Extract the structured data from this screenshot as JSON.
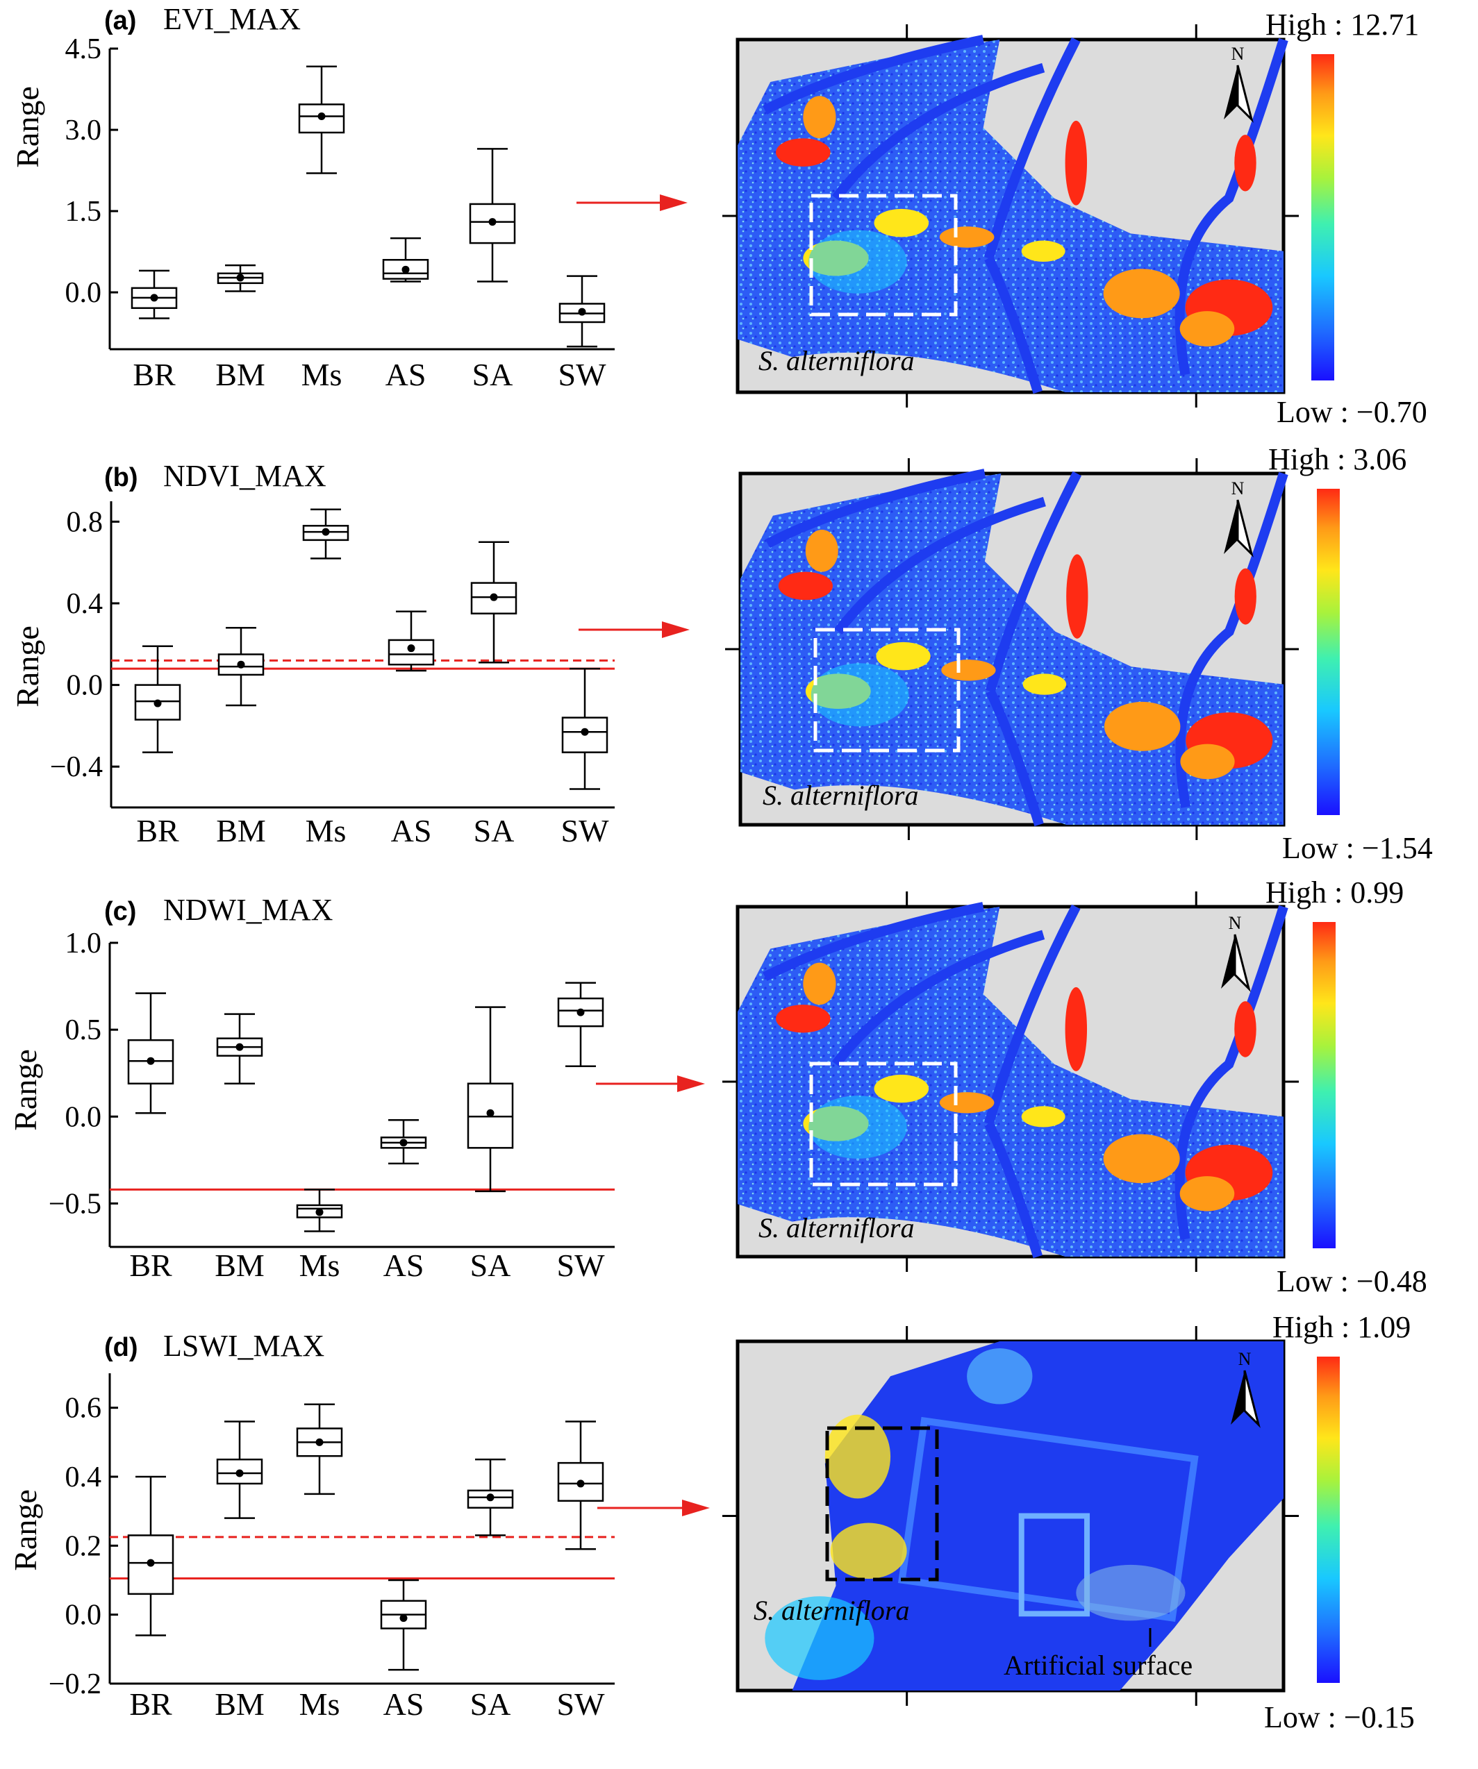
{
  "colors": {
    "axis": "#000000",
    "box": "#000000",
    "threshold": "#e8221f",
    "arrow": "#e8221f",
    "map_background": "#dcdcdc",
    "water_blue": "#1e3cf0",
    "colorbar": [
      "#1a10ff",
      "#1f6bff",
      "#19c8ff",
      "#3ff0b0",
      "#a8f23c",
      "#ffe61a",
      "#ff9a17",
      "#ff2a14"
    ]
  },
  "chart_data": [
    {
      "type": "boxplot",
      "panel": "(a)",
      "title": "EVI_MAX",
      "ylabel": "Range",
      "ylim": [
        -1.05,
        4.5
      ],
      "yticks": [
        4.5,
        3.0,
        1.5,
        0.0
      ],
      "ytick_labels": [
        "4.5",
        "3.0",
        "1.5",
        "0.0"
      ],
      "categories": [
        "BR",
        "BM",
        "Ms",
        "AS",
        "SA",
        "SW"
      ],
      "boxes": [
        {
          "whisker_low": -0.48,
          "q1": -0.29,
          "median": -0.1,
          "q3": 0.08,
          "whisker_high": 0.4,
          "mean": -0.1
        },
        {
          "whisker_low": 0.02,
          "q1": 0.17,
          "median": 0.27,
          "q3": 0.35,
          "whisker_high": 0.5,
          "mean": 0.27
        },
        {
          "whisker_low": 2.2,
          "q1": 2.95,
          "median": 3.25,
          "q3": 3.47,
          "whisker_high": 4.17,
          "mean": 3.25
        },
        {
          "whisker_low": 0.2,
          "q1": 0.25,
          "median": 0.35,
          "q3": 0.6,
          "whisker_high": 1.0,
          "mean": 0.42
        },
        {
          "whisker_low": 0.2,
          "q1": 0.91,
          "median": 1.3,
          "q3": 1.63,
          "whisker_high": 2.65,
          "mean": 1.3
        },
        {
          "whisker_low": -1.0,
          "q1": -0.55,
          "median": -0.39,
          "q3": -0.21,
          "whisker_high": 0.3,
          "mean": -0.36
        }
      ],
      "thresholds": []
    },
    {
      "type": "boxplot",
      "panel": "(b)",
      "title": "NDVI_MAX",
      "ylabel": "Range",
      "ylim": [
        -0.6,
        0.9
      ],
      "yticks": [
        0.8,
        0.4,
        0.0,
        -0.4
      ],
      "ytick_labels": [
        "0.8",
        "0.4",
        "0.0",
        "−0.4"
      ],
      "categories": [
        "BR",
        "BM",
        "Ms",
        "AS",
        "SA",
        "SW"
      ],
      "boxes": [
        {
          "whisker_low": -0.33,
          "q1": -0.17,
          "median": -0.08,
          "q3": 0.0,
          "whisker_high": 0.19,
          "mean": -0.09
        },
        {
          "whisker_low": -0.1,
          "q1": 0.05,
          "median": 0.09,
          "q3": 0.15,
          "whisker_high": 0.28,
          "mean": 0.1
        },
        {
          "whisker_low": 0.62,
          "q1": 0.71,
          "median": 0.75,
          "q3": 0.78,
          "whisker_high": 0.86,
          "mean": 0.75
        },
        {
          "whisker_low": 0.07,
          "q1": 0.1,
          "median": 0.15,
          "q3": 0.22,
          "whisker_high": 0.36,
          "mean": 0.18
        },
        {
          "whisker_low": 0.11,
          "q1": 0.35,
          "median": 0.43,
          "q3": 0.5,
          "whisker_high": 0.7,
          "mean": 0.43
        },
        {
          "whisker_low": -0.51,
          "q1": -0.33,
          "median": -0.23,
          "q3": -0.16,
          "whisker_high": 0.08,
          "mean": -0.23
        }
      ],
      "thresholds": [
        {
          "value": 0.12,
          "style": "dashed"
        },
        {
          "value": 0.08,
          "style": "solid"
        }
      ]
    },
    {
      "type": "boxplot",
      "panel": "(c)",
      "title": "NDWI_MAX",
      "ylabel": "Range",
      "ylim": [
        -0.75,
        1.0
      ],
      "yticks": [
        1.0,
        0.5,
        0.0,
        -0.5
      ],
      "ytick_labels": [
        "1.0",
        "0.5",
        "0.0",
        "−0.5"
      ],
      "categories": [
        "BR",
        "BM",
        "Ms",
        "AS",
        "SA",
        "SW"
      ],
      "boxes": [
        {
          "whisker_low": 0.02,
          "q1": 0.19,
          "median": 0.32,
          "q3": 0.44,
          "whisker_high": 0.71,
          "mean": 0.32
        },
        {
          "whisker_low": 0.19,
          "q1": 0.35,
          "median": 0.4,
          "q3": 0.45,
          "whisker_high": 0.59,
          "mean": 0.4
        },
        {
          "whisker_low": -0.66,
          "q1": -0.58,
          "median": -0.53,
          "q3": -0.51,
          "whisker_high": -0.42,
          "mean": -0.55
        },
        {
          "whisker_low": -0.27,
          "q1": -0.18,
          "median": -0.15,
          "q3": -0.12,
          "whisker_high": -0.02,
          "mean": -0.15
        },
        {
          "whisker_low": -0.43,
          "q1": -0.18,
          "median": 0.0,
          "q3": 0.19,
          "whisker_high": 0.63,
          "mean": 0.02
        },
        {
          "whisker_low": 0.29,
          "q1": 0.52,
          "median": 0.61,
          "q3": 0.68,
          "whisker_high": 0.77,
          "mean": 0.6
        }
      ],
      "thresholds": [
        {
          "value": -0.42,
          "style": "solid"
        }
      ]
    },
    {
      "type": "boxplot",
      "panel": "(d)",
      "title": "LSWI_MAX",
      "ylabel": "Range",
      "ylim": [
        -0.2,
        0.7
      ],
      "yticks": [
        0.6,
        0.4,
        0.2,
        0.0,
        -0.2
      ],
      "ytick_labels": [
        "0.6",
        "0.4",
        "0.2",
        "0.0",
        "−0.2"
      ],
      "categories": [
        "BR",
        "BM",
        "Ms",
        "AS",
        "SA",
        "SW"
      ],
      "boxes": [
        {
          "whisker_low": -0.06,
          "q1": 0.06,
          "median": 0.15,
          "q3": 0.23,
          "whisker_high": 0.4,
          "mean": 0.15
        },
        {
          "whisker_low": 0.28,
          "q1": 0.38,
          "median": 0.41,
          "q3": 0.45,
          "whisker_high": 0.56,
          "mean": 0.41
        },
        {
          "whisker_low": 0.35,
          "q1": 0.46,
          "median": 0.5,
          "q3": 0.54,
          "whisker_high": 0.61,
          "mean": 0.5
        },
        {
          "whisker_low": -0.16,
          "q1": -0.04,
          "median": 0.0,
          "q3": 0.04,
          "whisker_high": 0.1,
          "mean": -0.01
        },
        {
          "whisker_low": 0.23,
          "q1": 0.31,
          "median": 0.34,
          "q3": 0.36,
          "whisker_high": 0.45,
          "mean": 0.34
        },
        {
          "whisker_low": 0.19,
          "q1": 0.33,
          "median": 0.38,
          "q3": 0.44,
          "whisker_high": 0.56,
          "mean": 0.38
        }
      ],
      "thresholds": [
        {
          "value": 0.225,
          "style": "dashed"
        },
        {
          "value": 0.105,
          "style": "solid"
        }
      ]
    }
  ],
  "maps": [
    {
      "high_label": "High : 12.71",
      "low_label": "Low : −0.70",
      "annotation": "S. alterniflora",
      "north_label": "N",
      "variant": "estuary"
    },
    {
      "high_label": "High : 3.06",
      "low_label": "Low : −1.54",
      "annotation": "S. alterniflora",
      "north_label": "N",
      "variant": "estuary"
    },
    {
      "high_label": "High : 0.99",
      "low_label": "Low : −0.48",
      "annotation": "S. alterniflora",
      "north_label": "N",
      "variant": "estuary"
    },
    {
      "high_label": "High : 1.09",
      "low_label": "Low : −0.15",
      "annotation": "S. alterniflora",
      "annotation2": "Artificial surface",
      "north_label": "N",
      "variant": "coast"
    }
  ]
}
